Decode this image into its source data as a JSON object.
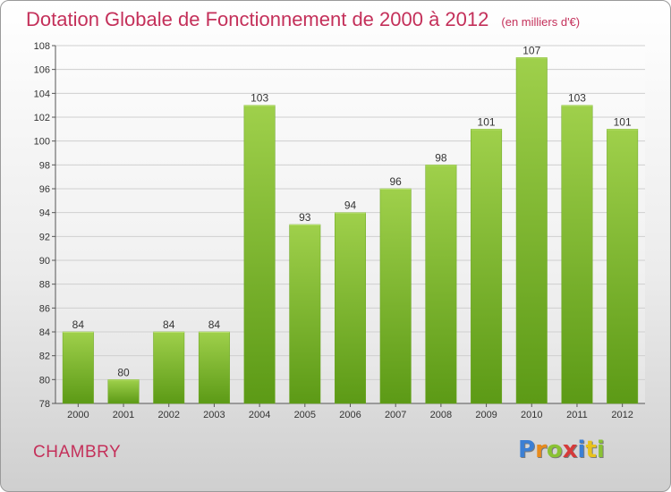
{
  "header": {
    "title": "Dotation Globale de Fonctionnement de 2000 à 2012",
    "subtitle": "(en milliers d'€)"
  },
  "footer": {
    "commune": "CHAMBRY",
    "logo_text": "Proxiti"
  },
  "colors": {
    "title": "#c4305a",
    "bar_light": "#9fd04b",
    "bar_dark": "#5c9a16",
    "grid": "#cfcfcf"
  },
  "chart_data": {
    "type": "bar",
    "categories": [
      "2000",
      "2001",
      "2002",
      "2003",
      "2004",
      "2005",
      "2006",
      "2007",
      "2008",
      "2009",
      "2010",
      "2011",
      "2012"
    ],
    "values": [
      84,
      80,
      84,
      84,
      103,
      93,
      94,
      96,
      98,
      101,
      107,
      103,
      101
    ],
    "ylim": [
      78,
      108
    ],
    "yticks": [
      78,
      80,
      82,
      84,
      86,
      88,
      90,
      92,
      94,
      96,
      98,
      100,
      102,
      104,
      106,
      108
    ],
    "grid": "horizontal",
    "data_labels": true,
    "legend": "none"
  }
}
